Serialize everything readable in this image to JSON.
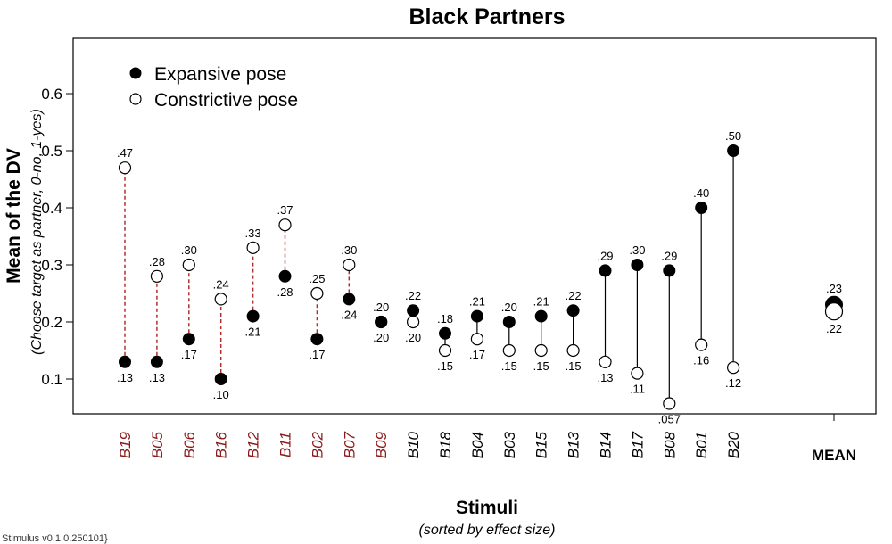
{
  "footer": "Stimulus v0.1.0.250101}",
  "chart_data": {
    "type": "scatter",
    "title": "Black Partners",
    "ylabel": "Mean of the DV",
    "ylabel_sub": "(Choose target as partner, 0-no, 1-yes)",
    "xlabel": "Stimuli",
    "xlabel_sub": "(sorted by effect size)",
    "ylim": [
      0.05,
      0.65
    ],
    "yticks": [
      0.1,
      0.2,
      0.3,
      0.4,
      0.5,
      0.6
    ],
    "ytick_labels": [
      "0.1",
      "0.2",
      "0.3",
      "0.4",
      "0.5",
      "0.6"
    ],
    "grid": false,
    "legend_position": "top-left",
    "legend": [
      "Expansive pose",
      "Constrictive pose"
    ],
    "colors": {
      "negative_effect": "#8b1a1a",
      "positive_effect": "#000000",
      "connector_negative": "#b03030"
    },
    "categories": [
      "B19",
      "B05",
      "B06",
      "B16",
      "B12",
      "B11",
      "B02",
      "B07",
      "B09",
      "B10",
      "B18",
      "B04",
      "B03",
      "B15",
      "B13",
      "B14",
      "B17",
      "B08",
      "B01",
      "B20"
    ],
    "category_negative": [
      true,
      true,
      true,
      true,
      true,
      true,
      true,
      true,
      true,
      false,
      false,
      false,
      false,
      false,
      false,
      false,
      false,
      false,
      false,
      false
    ],
    "series": [
      {
        "name": "Expansive pose",
        "marker": "filled",
        "values": [
          0.13,
          0.13,
          0.17,
          0.1,
          0.21,
          0.28,
          0.17,
          0.24,
          0.2,
          0.22,
          0.18,
          0.21,
          0.2,
          0.21,
          0.22,
          0.29,
          0.3,
          0.29,
          0.4,
          0.5
        ],
        "labels": [
          ".13",
          ".13",
          ".17",
          ".10",
          ".21",
          ".28",
          ".17",
          ".24",
          ".20",
          ".22",
          ".18",
          ".21",
          ".20",
          ".21",
          ".22",
          ".29",
          ".30",
          ".29",
          ".40",
          ".50"
        ]
      },
      {
        "name": "Constrictive pose",
        "marker": "open",
        "values": [
          0.47,
          0.28,
          0.3,
          0.24,
          0.33,
          0.37,
          0.25,
          0.3,
          0.2,
          0.2,
          0.15,
          0.17,
          0.15,
          0.15,
          0.15,
          0.13,
          0.11,
          0.057,
          0.16,
          0.12
        ],
        "labels": [
          ".47",
          ".28",
          ".30",
          ".24",
          ".33",
          ".37",
          ".25",
          ".30",
          ".20",
          ".20",
          ".15",
          ".17",
          ".15",
          ".15",
          ".15",
          ".13",
          ".11",
          ".057",
          ".16",
          ".12"
        ]
      }
    ],
    "mean": {
      "label": "MEAN",
      "expansive": 0.23,
      "constrictive": 0.22,
      "expansive_label": ".23",
      "constrictive_label": ".22"
    }
  }
}
